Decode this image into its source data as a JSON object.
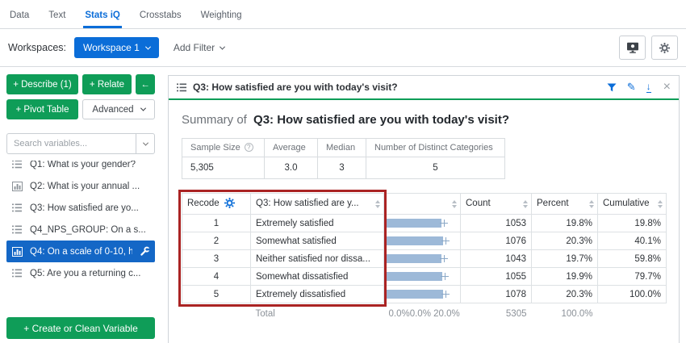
{
  "nav": {
    "tabs": [
      {
        "label": "Data",
        "active": false
      },
      {
        "label": "Text",
        "active": false
      },
      {
        "label": "Stats iQ",
        "active": true
      },
      {
        "label": "Crosstabs",
        "active": false
      },
      {
        "label": "Weighting",
        "active": false
      }
    ]
  },
  "workspace_bar": {
    "label": "Workspaces:",
    "workspace_button": "Workspace 1",
    "add_filter": "Add Filter"
  },
  "sidebar": {
    "buttons": {
      "describe": "+ Describe (1)",
      "relate": "+ Relate",
      "back": "←",
      "pivot": "+ Pivot Table",
      "advanced": "Advanced"
    },
    "search_placeholder": "Search variables...",
    "variables": [
      {
        "label": "Q1: What is your gender?",
        "icon": "list",
        "selected": false
      },
      {
        "label": "Q2: What is your annual ...",
        "icon": "bar-chart",
        "selected": false
      },
      {
        "label": "Q3: How satisfied are yo...",
        "icon": "list",
        "selected": false
      },
      {
        "label": "Q4_NPS_GROUP: On a s...",
        "icon": "list",
        "selected": false
      },
      {
        "label": "Q4: On a scale of 0-10, h...",
        "icon": "bar-chart",
        "selected": true,
        "has_wrench": true
      },
      {
        "label": "Q5: Are you a returning c...",
        "icon": "list",
        "selected": false
      }
    ],
    "create_button": "+ Create or Clean Variable"
  },
  "card": {
    "header": {
      "title": "Q3: How satisfied are you with today's visit?"
    },
    "summary": {
      "prefix": "Summary of",
      "title": "Q3: How satisfied are you with today's visit?"
    },
    "summary_table": {
      "headers": [
        "Sample Size",
        "Average",
        "Median",
        "Number of Distinct Categories"
      ],
      "values": [
        "5,305",
        "3.0",
        "3",
        "5"
      ]
    },
    "freq_table": {
      "headers": [
        "Recode",
        "Q3: How satisfied are y...",
        "",
        "Count",
        "Percent",
        "Cumulative"
      ],
      "rows": [
        {
          "recode": "1",
          "label": "Extremely satisfied",
          "bar_percent": 19.8,
          "count": "1053",
          "percent": "19.8%",
          "cumulative": "19.8%"
        },
        {
          "recode": "2",
          "label": "Somewhat satisfied",
          "bar_percent": 20.3,
          "count": "1076",
          "percent": "20.3%",
          "cumulative": "40.1%"
        },
        {
          "recode": "3",
          "label": "Neither satisfied nor dissa...",
          "bar_percent": 19.7,
          "count": "1043",
          "percent": "19.7%",
          "cumulative": "59.8%"
        },
        {
          "recode": "4",
          "label": "Somewhat dissatisfied",
          "bar_percent": 19.9,
          "count": "1055",
          "percent": "19.9%",
          "cumulative": "79.7%"
        },
        {
          "recode": "5",
          "label": "Extremely dissatisfied",
          "bar_percent": 20.3,
          "count": "1078",
          "percent": "20.3%",
          "cumulative": "100.0%"
        }
      ],
      "total": {
        "label": "Total",
        "axis_labels": "0.0%0.0% 20.0%",
        "count": "5305",
        "percent": "100.0%"
      }
    }
  },
  "colors": {
    "accent_blue": "#0b6dd8",
    "selected_blue": "#1467c6",
    "green": "#0f9d58",
    "bar_fill": "#9db9d8",
    "bar_whisker": "#8aa7c6",
    "annotation_red": "#aa2323"
  }
}
